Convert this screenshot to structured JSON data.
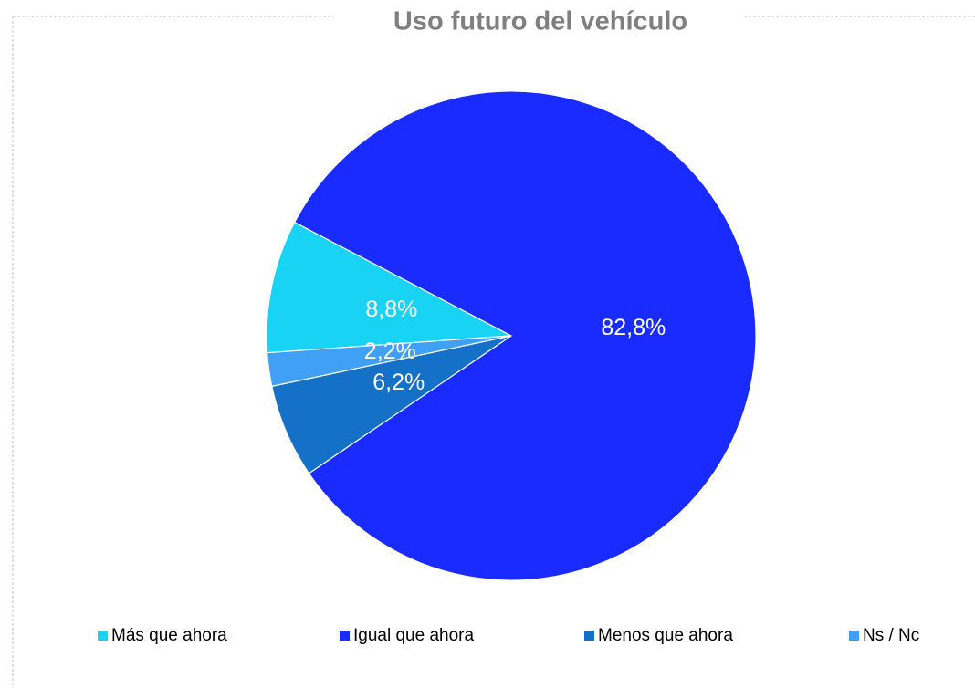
{
  "chart_data": {
    "type": "pie",
    "title": "Uso futuro del vehículo",
    "categories": [
      "Más que ahora",
      "Igual que ahora",
      "Menos que ahora",
      "Ns / Nc"
    ],
    "values": [
      8.8,
      82.8,
      6.2,
      2.2
    ],
    "value_labels": [
      "8,8%",
      "82,8%",
      "6,2%",
      "2,2%"
    ],
    "colors": [
      "#19d3f5",
      "#1a2bff",
      "#1570c8",
      "#3fa0f5"
    ],
    "legend": "bottom"
  }
}
